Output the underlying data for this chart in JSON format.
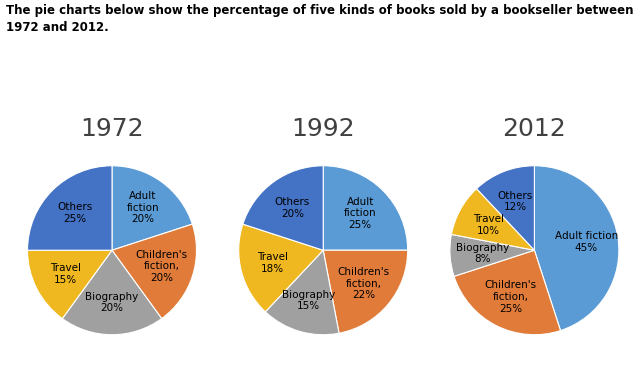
{
  "title": "The pie charts below show the percentage of five kinds of books sold by a bookseller between\n1972 and 2012.",
  "years": [
    "1972",
    "1992",
    "2012"
  ],
  "values": {
    "1972": [
      20,
      20,
      20,
      15,
      25
    ],
    "1992": [
      25,
      22,
      15,
      18,
      20
    ],
    "2012": [
      45,
      25,
      8,
      10,
      12
    ]
  },
  "labels": {
    "1972": [
      "Adult\nfiction\n20%",
      "Children's\nfiction,\n20%",
      "Biography\n20%",
      "Travel\n15%",
      "Others\n25%"
    ],
    "1992": [
      "Adult\nfiction\n25%",
      "Children's\nfiction,\n22%",
      "Biography\n15%",
      "Travel\n18%",
      "Others\n20%"
    ],
    "2012": [
      "Adult fiction\n45%",
      "Children's\nfiction,\n25%",
      "Biography\n8%",
      "Travel\n10%",
      "Others\n12%"
    ]
  },
  "colors": {
    "1972": [
      "#5B9BD5",
      "#E07B39",
      "#A0A0A0",
      "#F0B820",
      "#4472C4"
    ],
    "1992": [
      "#5B9BD5",
      "#E07B39",
      "#A0A0A0",
      "#F0B820",
      "#4472C4"
    ],
    "2012": [
      "#5B9BD5",
      "#E07B39",
      "#A0A0A0",
      "#F0B820",
      "#4472C4"
    ]
  },
  "start_angles": {
    "1972": 90,
    "1992": 90,
    "2012": 90
  },
  "background_color": "#FFFFFF",
  "title_fontsize": 8.5,
  "label_fontsize": 7.5,
  "year_fontsize": 18,
  "labeldistance": 0.62
}
